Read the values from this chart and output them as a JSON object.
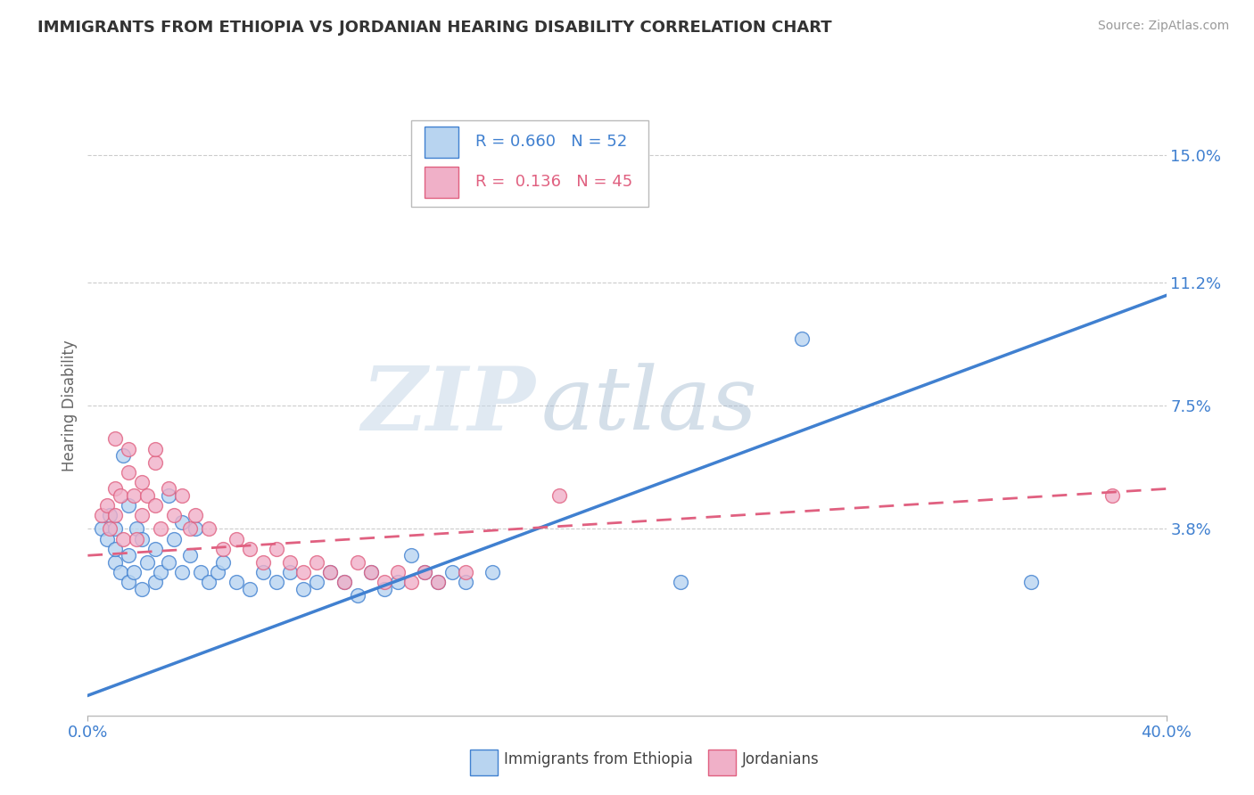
{
  "title": "IMMIGRANTS FROM ETHIOPIA VS JORDANIAN HEARING DISABILITY CORRELATION CHART",
  "source": "Source: ZipAtlas.com",
  "ylabel": "Hearing Disability",
  "series1_label": "Immigrants from Ethiopia",
  "series2_label": "Jordanians",
  "series1_R": "0.660",
  "series1_N": "52",
  "series2_R": "0.136",
  "series2_N": "45",
  "series1_color": "#b8d4f0",
  "series2_color": "#f0b0c8",
  "series1_line_color": "#4080d0",
  "series2_line_color": "#e06080",
  "xlim": [
    0.0,
    0.4
  ],
  "ylim": [
    -0.018,
    0.168
  ],
  "xtick_values": [
    0.0,
    0.4
  ],
  "xtick_labels": [
    "0.0%",
    "40.0%"
  ],
  "ytick_values": [
    0.038,
    0.075,
    0.112,
    0.15
  ],
  "ytick_labels": [
    "3.8%",
    "7.5%",
    "11.2%",
    "15.0%"
  ],
  "background_color": "#ffffff",
  "watermark": "ZIPatlas",
  "blue_line_x0": 0.0,
  "blue_line_y0": -0.012,
  "blue_line_x1": 0.4,
  "blue_line_y1": 0.108,
  "pink_line_x0": 0.0,
  "pink_line_y0": 0.03,
  "pink_line_x1": 0.4,
  "pink_line_y1": 0.05,
  "series1_x": [
    0.005,
    0.007,
    0.008,
    0.01,
    0.01,
    0.01,
    0.012,
    0.013,
    0.015,
    0.015,
    0.015,
    0.017,
    0.018,
    0.02,
    0.02,
    0.022,
    0.025,
    0.025,
    0.027,
    0.03,
    0.03,
    0.032,
    0.035,
    0.035,
    0.038,
    0.04,
    0.042,
    0.045,
    0.048,
    0.05,
    0.055,
    0.06,
    0.065,
    0.07,
    0.075,
    0.08,
    0.085,
    0.09,
    0.095,
    0.1,
    0.105,
    0.11,
    0.115,
    0.12,
    0.125,
    0.13,
    0.135,
    0.14,
    0.15,
    0.22,
    0.265,
    0.35
  ],
  "series1_y": [
    0.038,
    0.035,
    0.042,
    0.028,
    0.032,
    0.038,
    0.025,
    0.06,
    0.022,
    0.03,
    0.045,
    0.025,
    0.038,
    0.02,
    0.035,
    0.028,
    0.022,
    0.032,
    0.025,
    0.028,
    0.048,
    0.035,
    0.025,
    0.04,
    0.03,
    0.038,
    0.025,
    0.022,
    0.025,
    0.028,
    0.022,
    0.02,
    0.025,
    0.022,
    0.025,
    0.02,
    0.022,
    0.025,
    0.022,
    0.018,
    0.025,
    0.02,
    0.022,
    0.03,
    0.025,
    0.022,
    0.025,
    0.022,
    0.025,
    0.022,
    0.095,
    0.022
  ],
  "series2_x": [
    0.005,
    0.007,
    0.008,
    0.01,
    0.01,
    0.012,
    0.013,
    0.015,
    0.015,
    0.017,
    0.018,
    0.02,
    0.02,
    0.022,
    0.025,
    0.025,
    0.027,
    0.03,
    0.032,
    0.035,
    0.038,
    0.04,
    0.045,
    0.05,
    0.055,
    0.06,
    0.065,
    0.07,
    0.075,
    0.08,
    0.085,
    0.09,
    0.095,
    0.1,
    0.105,
    0.11,
    0.115,
    0.12,
    0.125,
    0.13,
    0.14,
    0.01,
    0.025,
    0.38,
    0.175
  ],
  "series2_y": [
    0.042,
    0.045,
    0.038,
    0.05,
    0.042,
    0.048,
    0.035,
    0.055,
    0.062,
    0.048,
    0.035,
    0.052,
    0.042,
    0.048,
    0.058,
    0.045,
    0.038,
    0.05,
    0.042,
    0.048,
    0.038,
    0.042,
    0.038,
    0.032,
    0.035,
    0.032,
    0.028,
    0.032,
    0.028,
    0.025,
    0.028,
    0.025,
    0.022,
    0.028,
    0.025,
    0.022,
    0.025,
    0.022,
    0.025,
    0.022,
    0.025,
    0.065,
    0.062,
    0.048,
    0.048
  ]
}
